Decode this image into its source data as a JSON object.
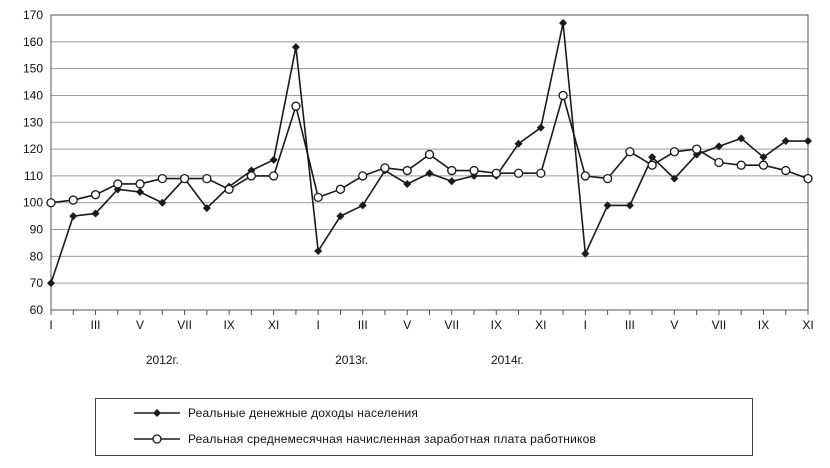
{
  "chart_data": {
    "type": "line",
    "ylim": [
      60,
      170
    ],
    "yticks": [
      60,
      70,
      80,
      90,
      100,
      110,
      120,
      130,
      140,
      150,
      160,
      170
    ],
    "x_tick_labels": [
      "I",
      "III",
      "V",
      "VII",
      "IX",
      "XI",
      "I",
      "III",
      "V",
      "VII",
      "IX",
      "XI",
      "I",
      "III",
      "V",
      "VII",
      "IX",
      "XI"
    ],
    "year_labels": [
      "2012г.",
      "2013г.",
      "2014г."
    ],
    "grid": true,
    "legend_position": "bottom",
    "series": [
      {
        "name": "Реальные денежные доходы населения",
        "marker": "diamond-filled",
        "color": "#1a1a1a",
        "values": [
          70,
          95,
          96,
          105,
          104,
          100,
          109,
          98,
          106,
          112,
          116,
          158,
          82,
          95,
          99,
          112,
          107,
          111,
          108,
          110,
          110,
          122,
          128,
          167,
          81,
          99,
          99,
          117,
          109,
          118,
          121,
          124,
          117,
          123,
          123
        ]
      },
      {
        "name": "Реальная среднемесячная начисленная заработная плата работников",
        "marker": "circle-open",
        "color": "#1a1a1a",
        "values": [
          100,
          101,
          103,
          107,
          107,
          109,
          109,
          109,
          105,
          110,
          110,
          136,
          102,
          105,
          110,
          113,
          112,
          118,
          112,
          112,
          111,
          111,
          111,
          140,
          110,
          109,
          119,
          114,
          119,
          120,
          115,
          114,
          114,
          112,
          109
        ]
      }
    ]
  }
}
